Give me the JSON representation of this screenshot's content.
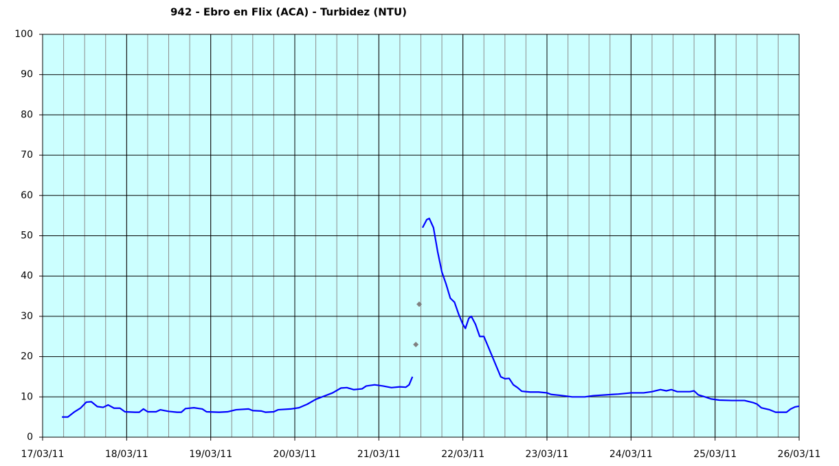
{
  "chart_data": {
    "type": "line",
    "title": "942 - Ebro en Flix (ACA) - Turbidez (NTU)",
    "xlim": [
      0,
      9
    ],
    "xticks": [
      {
        "value": 0,
        "label": "17/03/11"
      },
      {
        "value": 1,
        "label": "18/03/11"
      },
      {
        "value": 2,
        "label": "19/03/11"
      },
      {
        "value": 3,
        "label": "20/03/11"
      },
      {
        "value": 4,
        "label": "21/03/11"
      },
      {
        "value": 5,
        "label": "22/03/11"
      },
      {
        "value": 6,
        "label": "23/03/11"
      },
      {
        "value": 7,
        "label": "24/03/11"
      },
      {
        "value": 8,
        "label": "25/03/11"
      },
      {
        "value": 9,
        "label": "26/03/11"
      }
    ],
    "x_minor_step": 0.25,
    "ylim": [
      0,
      100
    ],
    "yticks": [
      0,
      10,
      20,
      30,
      40,
      50,
      60,
      70,
      80,
      90,
      100
    ],
    "grid": true,
    "plot_background": "#ccffff",
    "series": [
      {
        "color": "#0000ff",
        "style": "line",
        "x": [
          0.23,
          0.3,
          0.38,
          0.45,
          0.52,
          0.58,
          0.65,
          0.72,
          0.78,
          0.85,
          0.92,
          0.98,
          1.1,
          1.15,
          1.2,
          1.25,
          1.35,
          1.4,
          1.5,
          1.6,
          1.65,
          1.7,
          1.8,
          1.9,
          1.95,
          2.1,
          2.2,
          2.3,
          2.45,
          2.5,
          2.6,
          2.65,
          2.75,
          2.8,
          2.95,
          3.05,
          3.15,
          3.25,
          3.35,
          3.45,
          3.55,
          3.62,
          3.7,
          3.8,
          3.85,
          3.95,
          4.05,
          4.15,
          4.25,
          4.32,
          4.36,
          4.4,
          4.46,
          4.52,
          4.57,
          4.6,
          4.65,
          4.7,
          4.75,
          4.8,
          4.85,
          4.9,
          4.95,
          5.0,
          5.03,
          5.07,
          5.1,
          5.15,
          5.2,
          5.25,
          5.3,
          5.35,
          5.4,
          5.45,
          5.5,
          5.55,
          5.6,
          5.65,
          5.7,
          5.8,
          5.9,
          6.0,
          6.05,
          6.15,
          6.3,
          6.45,
          6.55,
          6.7,
          6.85,
          7.0,
          7.15,
          7.25,
          7.35,
          7.42,
          7.48,
          7.55,
          7.7,
          7.75,
          7.8,
          7.88,
          7.95,
          8.05,
          8.2,
          8.35,
          8.45,
          8.5,
          8.55,
          8.65,
          8.72,
          8.85,
          8.9,
          8.95,
          9.0
        ],
        "values": [
          5,
          5,
          6.3,
          7.2,
          8.7,
          8.8,
          7.6,
          7.4,
          8,
          7.2,
          7.2,
          6.3,
          6.2,
          6.2,
          7,
          6.3,
          6.3,
          6.8,
          6.4,
          6.2,
          6.2,
          7.1,
          7.3,
          7,
          6.3,
          6.2,
          6.3,
          6.8,
          7,
          6.6,
          6.5,
          6.2,
          6.3,
          6.8,
          7,
          7.3,
          8.2,
          9.4,
          10.2,
          11,
          12.2,
          12.3,
          11.8,
          12,
          12.7,
          13,
          12.7,
          12.3,
          12.5,
          12.4,
          13,
          15,
          null,
          52,
          54,
          54.3,
          52,
          46,
          41,
          38,
          34.5,
          33.5,
          30.5,
          28,
          27,
          29.5,
          30,
          28,
          25,
          25,
          22.5,
          20,
          17.5,
          15,
          14.5,
          14.6,
          13,
          12.3,
          11.4,
          11.2,
          11.2,
          11,
          10.6,
          10.4,
          10,
          10,
          10.3,
          10.5,
          10.7,
          11,
          11,
          11.3,
          11.8,
          11.5,
          11.8,
          11.3,
          11.3,
          11.5,
          10.5,
          10,
          9.5,
          9.2,
          9.1,
          9.1,
          8.6,
          8.2,
          7.3,
          6.8,
          6.2,
          6.2,
          7,
          7.5,
          7.7
        ]
      },
      {
        "color": "#808080",
        "style": "marker",
        "x": [
          4.44,
          4.48
        ],
        "values": [
          23,
          33
        ]
      }
    ]
  }
}
